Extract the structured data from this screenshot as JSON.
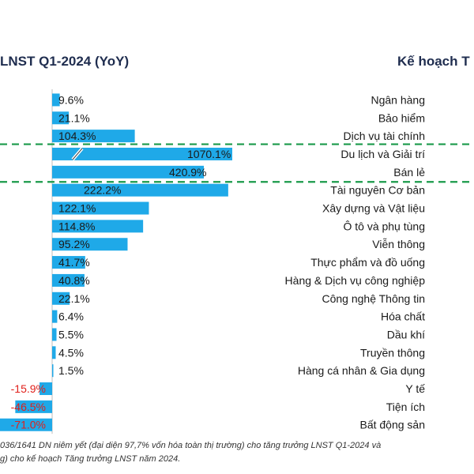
{
  "header": {
    "left_title": "LNST Q1-2024 (YoY)",
    "right_title": "Kế hoạch T"
  },
  "footnote": {
    "line1": "036/1641 DN niêm yết (đại diện 97,7% vốn hóa toàn thị trường) cho tăng trưởng LNST Q1-2024 và",
    "line2": "g) cho kế hoạch Tăng trưởng LNST năm 2024."
  },
  "colors": {
    "bar": "#1fa9e8",
    "negative_label": "#e0201b",
    "positive_label": "#1a1a1a",
    "dashed_line": "#1a9a4a",
    "title": "#1f2d4f"
  },
  "chart_data": {
    "type": "bar",
    "orientation": "horizontal",
    "axis_break": true,
    "categories": [
      "Ngân hàng",
      "Bảo hiểm",
      "Dịch vụ tài chính",
      "Du lịch và Giải trí",
      "Bán lẻ",
      "Tài nguyên Cơ bản",
      "Xây dựng và Vật liệu",
      "Ô tô và phụ tùng",
      "Viễn thông",
      "Thực phẩm và đồ uống",
      "Hàng & Dịch vụ công nghiệp",
      "Công nghệ Thông tin",
      "Hóa chất",
      "Dầu khí",
      "Truyền thông",
      "Hàng cá nhân & Gia dụng",
      "Y tế",
      "Tiện ích",
      "Bất động sản"
    ],
    "values": [
      9.6,
      21.1,
      104.3,
      1070.1,
      420.9,
      222.2,
      122.1,
      114.8,
      95.2,
      41.7,
      40.8,
      22.1,
      6.4,
      5.5,
      4.5,
      1.5,
      -15.9,
      -46.5,
      -71.0
    ],
    "labels": [
      "9.6%",
      "21.1%",
      "104.3%",
      "1070.1%",
      "420.9%",
      "222.2%",
      "122.1%",
      "114.8%",
      "95.2%",
      "41.7%",
      "40.8%",
      "22.1%",
      "6.4%",
      "5.5%",
      "4.5%",
      "1.5%",
      "-15.9%",
      "-46.5%",
      "-71.0%"
    ],
    "highlighted_categories": [
      "Du lịch và Giải trí",
      "Bán lẻ"
    ]
  }
}
